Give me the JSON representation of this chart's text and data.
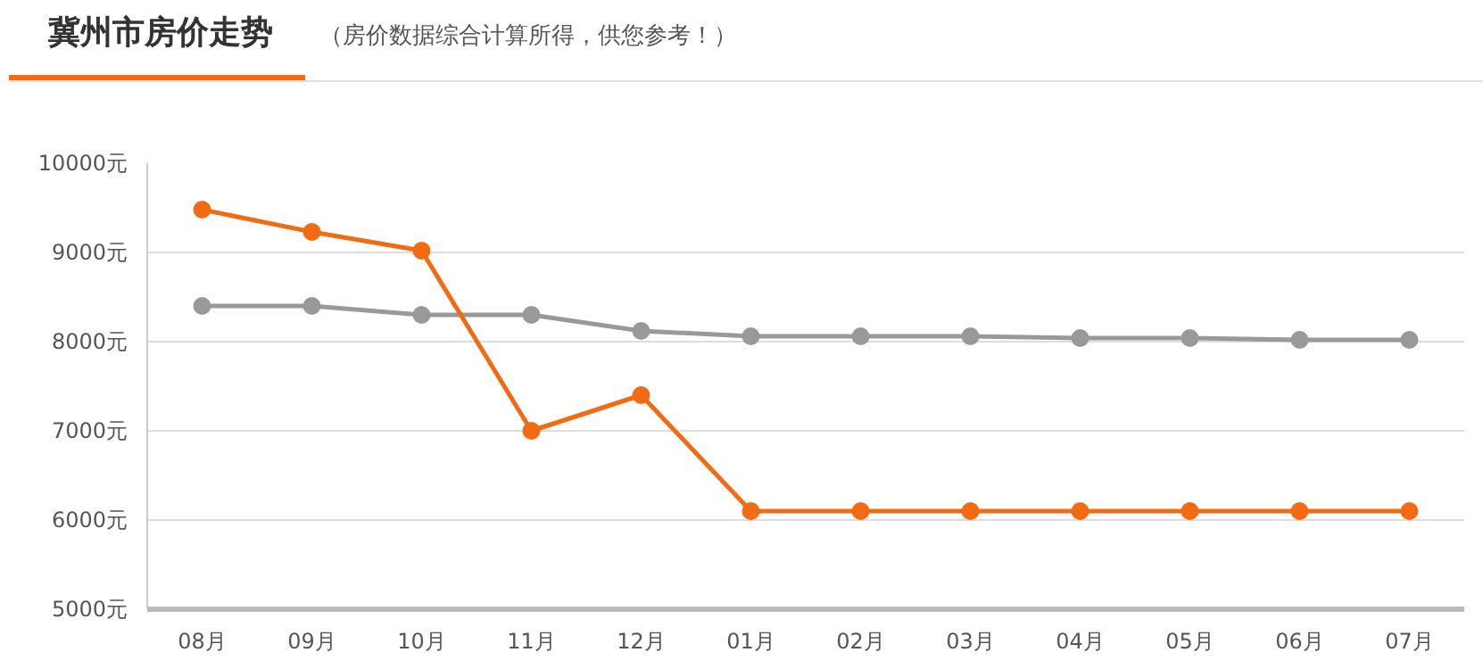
{
  "chart_data": {
    "type": "line",
    "title": "冀州市房价走势",
    "subtitle": "（房价数据综合计算所得，供您参考！）",
    "categories": [
      "08月",
      "09月",
      "10月",
      "11月",
      "12月",
      "01月",
      "02月",
      "03月",
      "04月",
      "05月",
      "06月",
      "07月"
    ],
    "series": [
      {
        "color": "#999999",
        "values": [
          8400,
          8400,
          8300,
          8300,
          8120,
          8060,
          8060,
          8060,
          8040,
          8040,
          8020,
          8020
        ]
      },
      {
        "color": "#f26b12",
        "values": [
          9480,
          9230,
          9020,
          7000,
          7400,
          6100,
          6100,
          6100,
          6100,
          6100,
          6100,
          6100
        ]
      }
    ],
    "ylim": [
      5000,
      10000
    ],
    "yticks": [
      {
        "value": 5000,
        "label": "5000元"
      },
      {
        "value": 6000,
        "label": "6000元"
      },
      {
        "value": 7000,
        "label": "7000元"
      },
      {
        "value": 8000,
        "label": "8000元"
      },
      {
        "value": 9000,
        "label": "9000元"
      },
      {
        "value": 10000,
        "label": "10000元"
      }
    ],
    "grid": "y",
    "marker": "circle",
    "line_style": "solid"
  }
}
